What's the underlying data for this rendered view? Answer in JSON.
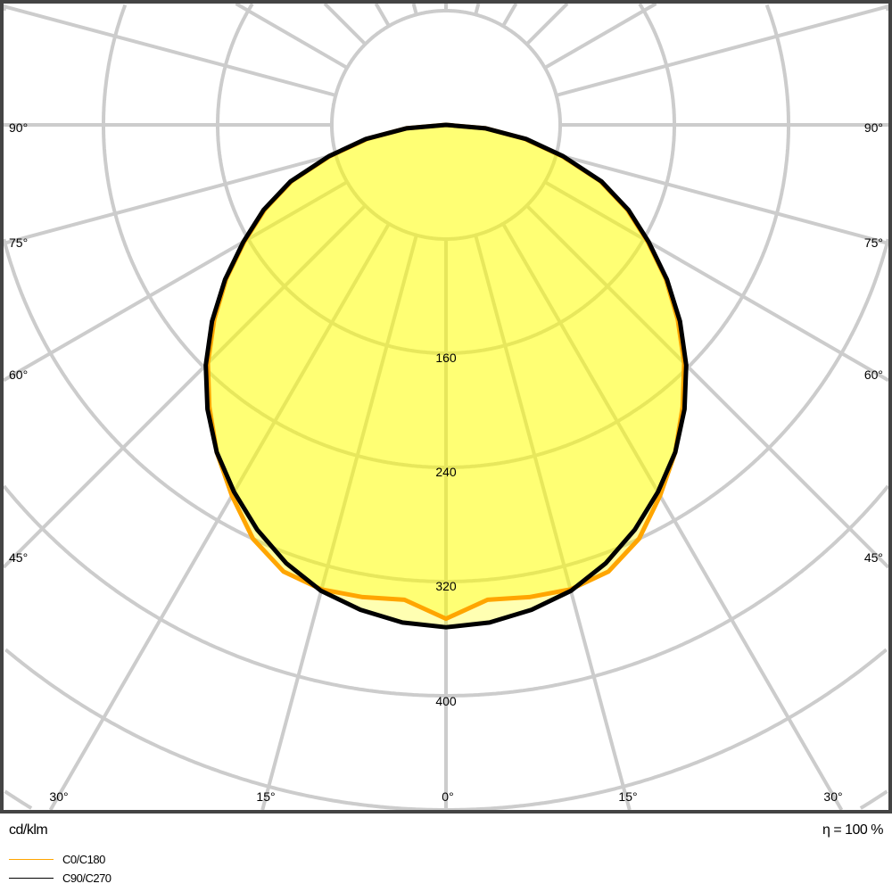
{
  "chart_data": {
    "type": "polar",
    "unit_label": "cd/klm",
    "efficiency_label": "η = 100 %",
    "radial_ticks": [
      80,
      160,
      240,
      320,
      400,
      480,
      560,
      640
    ],
    "radial_tick_labels": [
      "160",
      "240",
      "320",
      "400"
    ],
    "angle_labels": {
      "side": [
        "90°",
        "75°",
        "60°",
        "45°"
      ],
      "bottom": [
        "30°",
        "15°",
        "0°",
        "15°",
        "30°"
      ]
    },
    "angle_step_deg": 15,
    "grid": true,
    "legend_placement": "bottom-left",
    "angles_deg": [
      0,
      5,
      10,
      15,
      20,
      25,
      30,
      35,
      40,
      45,
      50,
      55,
      60,
      65,
      70,
      75,
      80,
      85,
      90
    ],
    "series": [
      {
        "name": "C0/C180",
        "color": "#ffa500",
        "values": [
          346,
          334,
          336,
          337,
          333,
          320,
          300,
          280,
          258,
          236,
          212,
          188,
          163,
          140,
          115,
          84,
          56,
          28,
          0
        ]
      },
      {
        "name": "C90/C270",
        "color": "#000000",
        "values": [
          352,
          350,
          345,
          338,
          327,
          313,
          297,
          280,
          260,
          238,
          214,
          189,
          164,
          141,
          116,
          85,
          57,
          28,
          0
        ]
      }
    ],
    "colors": {
      "fill": "#ffff00",
      "grid": "#cccccc",
      "frame": "#444444"
    }
  }
}
